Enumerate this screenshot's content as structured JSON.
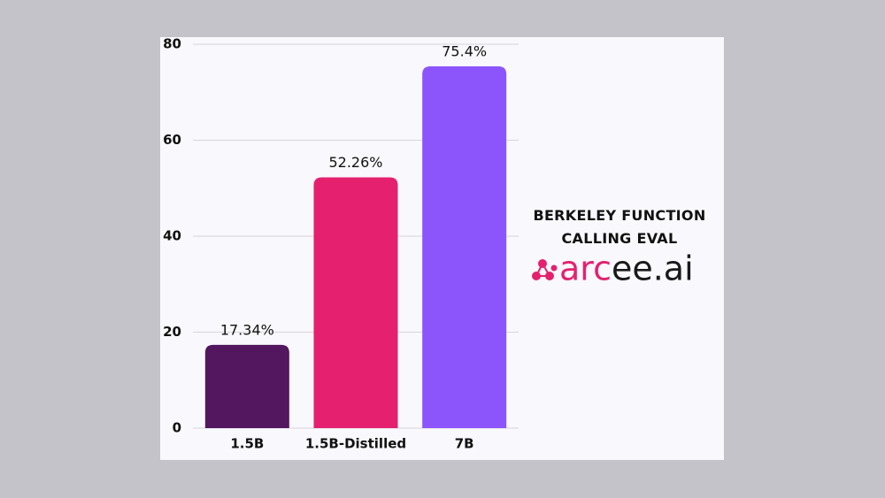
{
  "chart_data": {
    "type": "bar",
    "title": "BERKELEY FUNCTION CALLING EVAL",
    "brand": "arcee.ai",
    "categories": [
      "1.5B",
      "1.5B-Distilled",
      "7B"
    ],
    "values": [
      17.34,
      52.26,
      75.4
    ],
    "value_labels": [
      "17.34%",
      "52.26%",
      "75.4%"
    ],
    "colors": [
      "#52175e",
      "#e5206f",
      "#8c55fc"
    ],
    "ylim": [
      0,
      80
    ],
    "yticks": [
      0,
      20,
      40,
      60,
      80
    ],
    "grid": true
  }
}
